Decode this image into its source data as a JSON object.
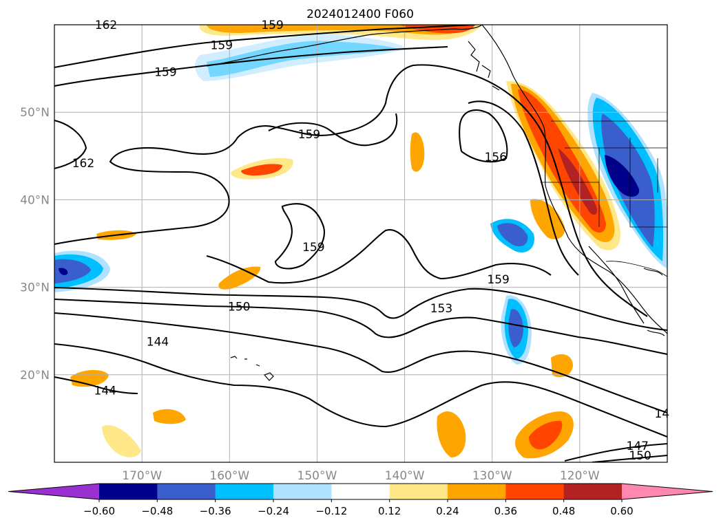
{
  "title": "2024012400 F060",
  "map": {
    "lon_range": [
      -180,
      -110
    ],
    "lat_range": [
      10,
      60
    ],
    "lon_ticks": [
      {
        "value": -170,
        "label": "170°W"
      },
      {
        "value": -160,
        "label": "160°W"
      },
      {
        "value": -150,
        "label": "150°W"
      },
      {
        "value": -140,
        "label": "140°W"
      },
      {
        "value": -130,
        "label": "130°W"
      },
      {
        "value": -120,
        "label": "120°W"
      }
    ],
    "lat_ticks": [
      {
        "value": 50,
        "label": "50°N"
      },
      {
        "value": 40,
        "label": "40°N"
      },
      {
        "value": 30,
        "label": "30°N"
      },
      {
        "value": 20,
        "label": "20°N"
      }
    ],
    "gridlines": true,
    "tick_label_color": "#888888"
  },
  "contour_labels": [
    {
      "text": "162",
      "lon": -174.1,
      "lat": 60.0
    },
    {
      "text": "159",
      "lon": -155.1,
      "lat": 60.0
    },
    {
      "text": "159",
      "lon": -160.9,
      "lat": 57.7
    },
    {
      "text": "159",
      "lon": -167.3,
      "lat": 54.6
    },
    {
      "text": "162",
      "lon": -176.7,
      "lat": 44.2
    },
    {
      "text": "159",
      "lon": -150.9,
      "lat": 47.5
    },
    {
      "text": "156",
      "lon": -129.6,
      "lat": 44.9
    },
    {
      "text": "159",
      "lon": -150.4,
      "lat": 34.6
    },
    {
      "text": "159",
      "lon": -129.3,
      "lat": 30.9
    },
    {
      "text": "150",
      "lon": -158.9,
      "lat": 27.8
    },
    {
      "text": "153",
      "lon": -135.8,
      "lat": 27.6
    },
    {
      "text": "144",
      "lon": -168.2,
      "lat": 23.8
    },
    {
      "text": "144",
      "lon": -174.2,
      "lat": 18.2
    },
    {
      "text": "147",
      "lon": -113.4,
      "lat": 11.9
    },
    {
      "text": "150",
      "lon": -113.1,
      "lat": 10.8
    },
    {
      "text": "14",
      "lon": -110.6,
      "lat": 15.6
    }
  ],
  "colorbar": {
    "levels": [
      -0.6,
      -0.48,
      -0.36,
      -0.24,
      -0.12,
      0.12,
      0.24,
      0.36,
      0.48,
      0.6
    ],
    "tick_labels": [
      "−0.60",
      "−0.48",
      "−0.36",
      "−0.24",
      "−0.12",
      "0.12",
      "0.24",
      "0.36",
      "0.48",
      "0.60"
    ],
    "colors": [
      "#9b30d0",
      "#00008b",
      "#3a5fcd",
      "#00bfff",
      "#b0e2ff",
      "#ffffff",
      "#ffe88a",
      "#ffa500",
      "#ff4500",
      "#b22222",
      "#ff88b0"
    ],
    "extend": "both"
  }
}
